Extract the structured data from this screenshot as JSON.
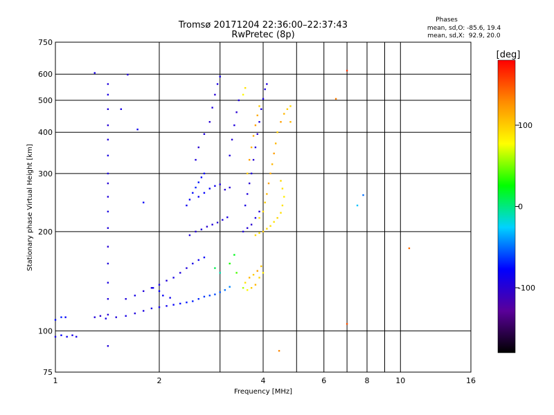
{
  "chart_data": {
    "type": "scatter",
    "title": "Tromsø 20171204 22:36:00–22:37:43",
    "subtitle": "RwPretec (8p)",
    "xlabel": "Frequency [MHz]",
    "ylabel": "Stationary phase Virtual Height [km]",
    "xscale": "log",
    "yscale": "log",
    "xlim": [
      1,
      16
    ],
    "ylim": [
      75,
      750
    ],
    "x_ticks": [
      1,
      2,
      4,
      6,
      8,
      10,
      16
    ],
    "x_tick_labels": [
      "1",
      "2",
      "4",
      "6",
      "8",
      "10",
      "16"
    ],
    "x_minor_ticks": [
      3,
      5,
      7,
      9
    ],
    "y_ticks": [
      75,
      100,
      200,
      300,
      400,
      500,
      600,
      750
    ],
    "y_tick_labels": [
      "75",
      "100",
      "200",
      "300",
      "400",
      "500",
      "600",
      "750"
    ],
    "grid": true,
    "legend": {
      "title": "Phases",
      "lines": [
        "mean, sd,O: -85.6, 19.4",
        "mean, sd,X:  92.9, 20.0"
      ],
      "position": "top-right"
    },
    "colorbar": {
      "label": "[deg]",
      "range": [
        -180,
        180
      ],
      "ticks": [
        100,
        0,
        -100
      ],
      "tick_labels": [
        "100",
        "0",
        "-100"
      ],
      "colormap": [
        "#000000",
        "#5a009a",
        "#0000ff",
        "#00d2ff",
        "#00ff00",
        "#ffff00",
        "#ff8c00",
        "#ff0000"
      ]
    },
    "series": [
      {
        "description": "O-mode phase traces (blue/cyan)",
        "points": [
          [
            1.0,
            96,
            -90
          ],
          [
            1.04,
            97,
            -80
          ],
          [
            1.08,
            96,
            -85
          ],
          [
            1.12,
            97,
            -90
          ],
          [
            1.15,
            96,
            -88
          ],
          [
            1.0,
            108,
            -75
          ],
          [
            1.04,
            110,
            -70
          ],
          [
            1.07,
            110,
            -80
          ],
          [
            1.3,
            110,
            -95
          ],
          [
            1.35,
            111,
            -100
          ],
          [
            1.4,
            109,
            -90
          ],
          [
            1.5,
            110,
            -95
          ],
          [
            1.6,
            111,
            -90
          ],
          [
            1.7,
            113,
            -95
          ],
          [
            1.8,
            115,
            -92
          ],
          [
            1.9,
            117,
            -90
          ],
          [
            2.0,
            118,
            -88
          ],
          [
            2.1,
            119,
            -85
          ],
          [
            2.2,
            120,
            -80
          ],
          [
            2.3,
            121,
            -75
          ],
          [
            2.4,
            122,
            -72
          ],
          [
            2.5,
            123,
            -70
          ],
          [
            2.6,
            125,
            -68
          ],
          [
            2.7,
            127,
            -65
          ],
          [
            2.8,
            128,
            -62
          ],
          [
            2.9,
            129,
            -60
          ],
          [
            3.0,
            131,
            -55
          ],
          [
            3.1,
            133,
            -50
          ],
          [
            3.2,
            136,
            -45
          ],
          [
            1.6,
            125,
            -95
          ],
          [
            1.7,
            128,
            -90
          ],
          [
            1.8,
            132,
            -95
          ],
          [
            1.9,
            135,
            -92
          ],
          [
            2.0,
            138,
            -90
          ],
          [
            2.1,
            142,
            -95
          ],
          [
            2.2,
            145,
            -90
          ],
          [
            2.3,
            150,
            -95
          ],
          [
            2.4,
            155,
            -95
          ],
          [
            2.5,
            160,
            -90
          ],
          [
            2.6,
            164,
            -85
          ],
          [
            2.7,
            167,
            -80
          ],
          [
            1.92,
            135,
            -85
          ],
          [
            2.0,
            132,
            -80
          ],
          [
            2.05,
            128,
            -82
          ],
          [
            2.15,
            126,
            -86
          ],
          [
            2.45,
            195,
            -95
          ],
          [
            2.55,
            200,
            -98
          ],
          [
            2.65,
            203,
            -95
          ],
          [
            2.75,
            207,
            -100
          ],
          [
            2.85,
            210,
            -95
          ],
          [
            2.95,
            213,
            -98
          ],
          [
            3.05,
            217,
            -95
          ],
          [
            3.15,
            221,
            -92
          ],
          [
            2.4,
            240,
            -85
          ],
          [
            2.45,
            250,
            -80
          ],
          [
            2.5,
            262,
            -75
          ],
          [
            2.55,
            272,
            -70
          ],
          [
            2.6,
            282,
            -72
          ],
          [
            2.65,
            292,
            -75
          ],
          [
            2.7,
            300,
            -80
          ],
          [
            2.6,
            255,
            -82
          ],
          [
            2.7,
            262,
            -78
          ],
          [
            2.8,
            270,
            -80
          ],
          [
            2.9,
            275,
            -85
          ],
          [
            3.0,
            278,
            -95
          ],
          [
            3.1,
            268,
            -100
          ],
          [
            3.2,
            272,
            -98
          ],
          [
            2.55,
            330,
            -95
          ],
          [
            2.6,
            360,
            -100
          ],
          [
            2.7,
            395,
            -95
          ],
          [
            2.8,
            430,
            -100
          ],
          [
            2.85,
            475,
            -95
          ],
          [
            2.9,
            520,
            -98
          ],
          [
            2.95,
            560,
            -92
          ],
          [
            3.0,
            590,
            -90
          ],
          [
            3.2,
            340,
            -95
          ],
          [
            3.25,
            380,
            -98
          ],
          [
            3.3,
            420,
            -95
          ],
          [
            3.35,
            460,
            -100
          ],
          [
            3.4,
            500,
            -95
          ],
          [
            3.5,
            200,
            -95
          ],
          [
            3.6,
            205,
            -98
          ],
          [
            3.7,
            210,
            -100
          ],
          [
            3.8,
            220,
            -95
          ],
          [
            3.9,
            230,
            -98
          ],
          [
            3.55,
            240,
            -92
          ],
          [
            3.6,
            260,
            -95
          ],
          [
            3.65,
            280,
            -100
          ],
          [
            3.7,
            300,
            -95
          ],
          [
            3.75,
            330,
            -98
          ],
          [
            3.8,
            360,
            -95
          ],
          [
            3.85,
            395,
            -100
          ],
          [
            3.9,
            430,
            -95
          ],
          [
            3.95,
            470,
            -92
          ],
          [
            4.0,
            505,
            -90
          ],
          [
            4.05,
            540,
            -92
          ],
          [
            4.1,
            560,
            -95
          ],
          [
            1.42,
            560,
            -95
          ],
          [
            1.42,
            520,
            -92
          ],
          [
            1.42,
            470,
            -95
          ],
          [
            1.42,
            420,
            -98
          ],
          [
            1.42,
            380,
            -95
          ],
          [
            1.42,
            340,
            -92
          ],
          [
            1.42,
            300,
            -95
          ],
          [
            1.42,
            280,
            -98
          ],
          [
            1.42,
            255,
            -95
          ],
          [
            1.42,
            230,
            -92
          ],
          [
            1.42,
            205,
            -95
          ],
          [
            1.42,
            180,
            -98
          ],
          [
            1.42,
            160,
            -95
          ],
          [
            1.42,
            140,
            -92
          ],
          [
            1.42,
            125,
            -95
          ],
          [
            1.42,
            112,
            -98
          ],
          [
            1.42,
            90,
            -95
          ],
          [
            1.3,
            605,
            -90
          ],
          [
            1.62,
            598,
            -95
          ],
          [
            1.73,
            408,
            -85
          ],
          [
            1.8,
            245,
            -80
          ],
          [
            1.55,
            470,
            -90
          ]
        ]
      },
      {
        "description": "X-mode phase traces (yellow/orange)",
        "points": [
          [
            3.5,
            135,
            60
          ],
          [
            3.6,
            133,
            80
          ],
          [
            3.7,
            135,
            100
          ],
          [
            3.8,
            138,
            110
          ],
          [
            3.9,
            145,
            95
          ],
          [
            4.0,
            150,
            85
          ],
          [
            3.55,
            140,
            90
          ],
          [
            3.65,
            145,
            110
          ],
          [
            3.75,
            148,
            100
          ],
          [
            3.85,
            152,
            120
          ],
          [
            3.95,
            157,
            105
          ],
          [
            3.8,
            195,
            95
          ],
          [
            3.9,
            198,
            90
          ],
          [
            4.0,
            200,
            100
          ],
          [
            4.1,
            204,
            95
          ],
          [
            4.2,
            208,
            92
          ],
          [
            4.3,
            214,
            90
          ],
          [
            4.4,
            220,
            95
          ],
          [
            4.5,
            228,
            92
          ],
          [
            4.55,
            240,
            90
          ],
          [
            4.6,
            255,
            85
          ],
          [
            4.55,
            270,
            90
          ],
          [
            4.5,
            285,
            95
          ],
          [
            3.9,
            220,
            90
          ],
          [
            4.0,
            230,
            95
          ],
          [
            4.05,
            245,
            100
          ],
          [
            4.1,
            260,
            110
          ],
          [
            4.15,
            280,
            120
          ],
          [
            4.2,
            300,
            115
          ],
          [
            4.25,
            320,
            110
          ],
          [
            4.3,
            345,
            120
          ],
          [
            4.35,
            370,
            110
          ],
          [
            4.4,
            400,
            100
          ],
          [
            4.5,
            430,
            120
          ],
          [
            4.6,
            455,
            110
          ],
          [
            4.7,
            470,
            100
          ],
          [
            4.8,
            480,
            95
          ],
          [
            3.6,
            300,
            100
          ],
          [
            3.65,
            330,
            120
          ],
          [
            3.7,
            360,
            110
          ],
          [
            3.75,
            390,
            115
          ],
          [
            3.8,
            420,
            120
          ],
          [
            3.85,
            450,
            115
          ],
          [
            3.9,
            480,
            100
          ],
          [
            3.5,
            520,
            80
          ],
          [
            3.55,
            545,
            90
          ],
          [
            4.8,
            430,
            110
          ],
          [
            3.2,
            160,
            30
          ],
          [
            3.3,
            170,
            20
          ],
          [
            3.35,
            150,
            40
          ],
          [
            2.9,
            155,
            10
          ],
          [
            3.0,
            150,
            -10
          ],
          [
            6.5,
            505,
            135
          ],
          [
            7.0,
            615,
            160
          ],
          [
            7.0,
            105,
            150
          ],
          [
            10.6,
            178,
            140
          ],
          [
            4.45,
            87,
            130
          ],
          [
            7.5,
            240,
            -30
          ],
          [
            7.8,
            258,
            -50
          ]
        ]
      }
    ]
  }
}
